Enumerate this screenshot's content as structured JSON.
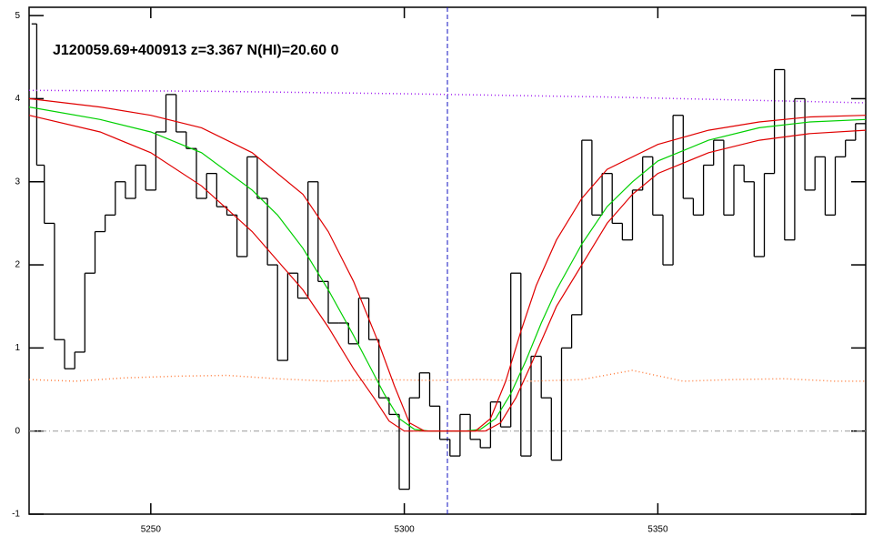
{
  "chart_data": {
    "type": "line",
    "title": "J120059.69+400913 z=3.367 N(HI)=20.60 0",
    "xlim": [
      5226,
      5391
    ],
    "ylim": [
      -1,
      5.1
    ],
    "xticks": [
      5250,
      5300,
      5350
    ],
    "yticks": [
      -1,
      0,
      1,
      2,
      3,
      4,
      5
    ],
    "vline": 5308.5,
    "vline_color": "#1010c0",
    "hline": 0,
    "hline_color": "#999999",
    "series": [
      {
        "style": "steps",
        "color": "#000000",
        "x": [
          5227,
          5228,
          5230,
          5232,
          5234,
          5236,
          5238,
          5240,
          5242,
          5244,
          5246,
          5248,
          5250,
          5252,
          5254,
          5256,
          5258,
          5260,
          5262,
          5264,
          5266,
          5268,
          5270,
          5272,
          5274,
          5276,
          5278,
          5280,
          5282,
          5284,
          5286,
          5288,
          5290,
          5292,
          5294,
          5296,
          5298,
          5300,
          5302,
          5304,
          5306,
          5308,
          5310,
          5312,
          5314,
          5316,
          5318,
          5320,
          5322,
          5324,
          5326,
          5328,
          5330,
          5332,
          5334,
          5336,
          5338,
          5340,
          5342,
          5344,
          5346,
          5348,
          5350,
          5352,
          5354,
          5356,
          5358,
          5360,
          5362,
          5364,
          5366,
          5368,
          5370,
          5372,
          5374,
          5376,
          5378,
          5380,
          5382,
          5384,
          5386,
          5388,
          5390
        ],
        "values": [
          4.9,
          3.2,
          2.5,
          1.1,
          0.75,
          0.95,
          1.9,
          2.4,
          2.6,
          3.0,
          2.8,
          3.2,
          2.9,
          3.6,
          4.05,
          3.6,
          3.4,
          2.8,
          3.1,
          2.7,
          2.6,
          2.1,
          3.3,
          2.8,
          2.0,
          0.85,
          1.9,
          1.6,
          3.0,
          1.8,
          1.3,
          1.3,
          1.05,
          1.6,
          1.1,
          0.4,
          0.2,
          -0.7,
          0.4,
          0.7,
          0.3,
          -0.1,
          -0.3,
          0.2,
          -0.1,
          -0.2,
          0.35,
          0.05,
          1.9,
          -0.3,
          0.9,
          0.4,
          -0.35,
          1.0,
          1.4,
          3.5,
          2.6,
          3.1,
          2.5,
          2.3,
          2.9,
          3.3,
          2.6,
          2.0,
          3.8,
          2.8,
          2.6,
          3.2,
          3.5,
          2.6,
          3.2,
          3.0,
          2.1,
          3.1,
          4.35,
          2.3,
          4.0,
          2.9,
          3.3,
          2.6,
          3.3,
          3.5,
          3.7
        ]
      },
      {
        "style": "dotted",
        "color": "#a020f0",
        "x": [
          5226,
          5260,
          5300,
          5340,
          5391
        ],
        "values": [
          4.1,
          4.09,
          4.06,
          4.02,
          3.95
        ]
      },
      {
        "style": "dotted",
        "color": "#ff7f3f",
        "x": [
          5226,
          5235,
          5245,
          5255,
          5265,
          5275,
          5285,
          5295,
          5305,
          5315,
          5325,
          5335,
          5345,
          5355,
          5365,
          5375,
          5385,
          5391
        ],
        "values": [
          0.62,
          0.6,
          0.64,
          0.66,
          0.67,
          0.63,
          0.6,
          0.62,
          0.61,
          0.62,
          0.6,
          0.62,
          0.73,
          0.6,
          0.62,
          0.63,
          0.6,
          0.6
        ]
      },
      {
        "style": "line",
        "color": "#00d000",
        "x": [
          5226,
          5240,
          5250,
          5260,
          5270,
          5275,
          5280,
          5285,
          5290,
          5293,
          5296,
          5299,
          5302,
          5305,
          5312,
          5315,
          5318,
          5321,
          5324,
          5327,
          5330,
          5335,
          5340,
          5345,
          5350,
          5360,
          5370,
          5380,
          5391
        ],
        "values": [
          3.9,
          3.75,
          3.6,
          3.35,
          2.9,
          2.6,
          2.2,
          1.7,
          1.15,
          0.8,
          0.45,
          0.15,
          0.02,
          0,
          0,
          0.02,
          0.15,
          0.45,
          0.85,
          1.3,
          1.7,
          2.25,
          2.7,
          3.0,
          3.25,
          3.5,
          3.65,
          3.72,
          3.75
        ]
      },
      {
        "style": "line",
        "color": "#e00000",
        "x": [
          5226,
          5240,
          5250,
          5260,
          5270,
          5280,
          5285,
          5290,
          5295,
          5298,
          5301,
          5304,
          5314,
          5317,
          5320,
          5323,
          5326,
          5330,
          5335,
          5340,
          5350,
          5360,
          5370,
          5380,
          5391
        ],
        "values": [
          4.0,
          3.9,
          3.8,
          3.65,
          3.35,
          2.85,
          2.4,
          1.8,
          1.05,
          0.55,
          0.1,
          0,
          0,
          0.15,
          0.6,
          1.2,
          1.75,
          2.3,
          2.8,
          3.15,
          3.45,
          3.62,
          3.72,
          3.78,
          3.8
        ]
      },
      {
        "style": "line",
        "color": "#e00000",
        "x": [
          5226,
          5240,
          5250,
          5260,
          5270,
          5275,
          5280,
          5285,
          5290,
          5294,
          5297,
          5300,
          5316,
          5319,
          5322,
          5325,
          5330,
          5335,
          5340,
          5345,
          5350,
          5360,
          5370,
          5380,
          5391
        ],
        "values": [
          3.8,
          3.6,
          3.35,
          2.95,
          2.4,
          2.05,
          1.7,
          1.25,
          0.75,
          0.4,
          0.12,
          0,
          0,
          0.1,
          0.4,
          0.8,
          1.5,
          2.0,
          2.5,
          2.85,
          3.1,
          3.35,
          3.5,
          3.58,
          3.62
        ]
      }
    ]
  }
}
